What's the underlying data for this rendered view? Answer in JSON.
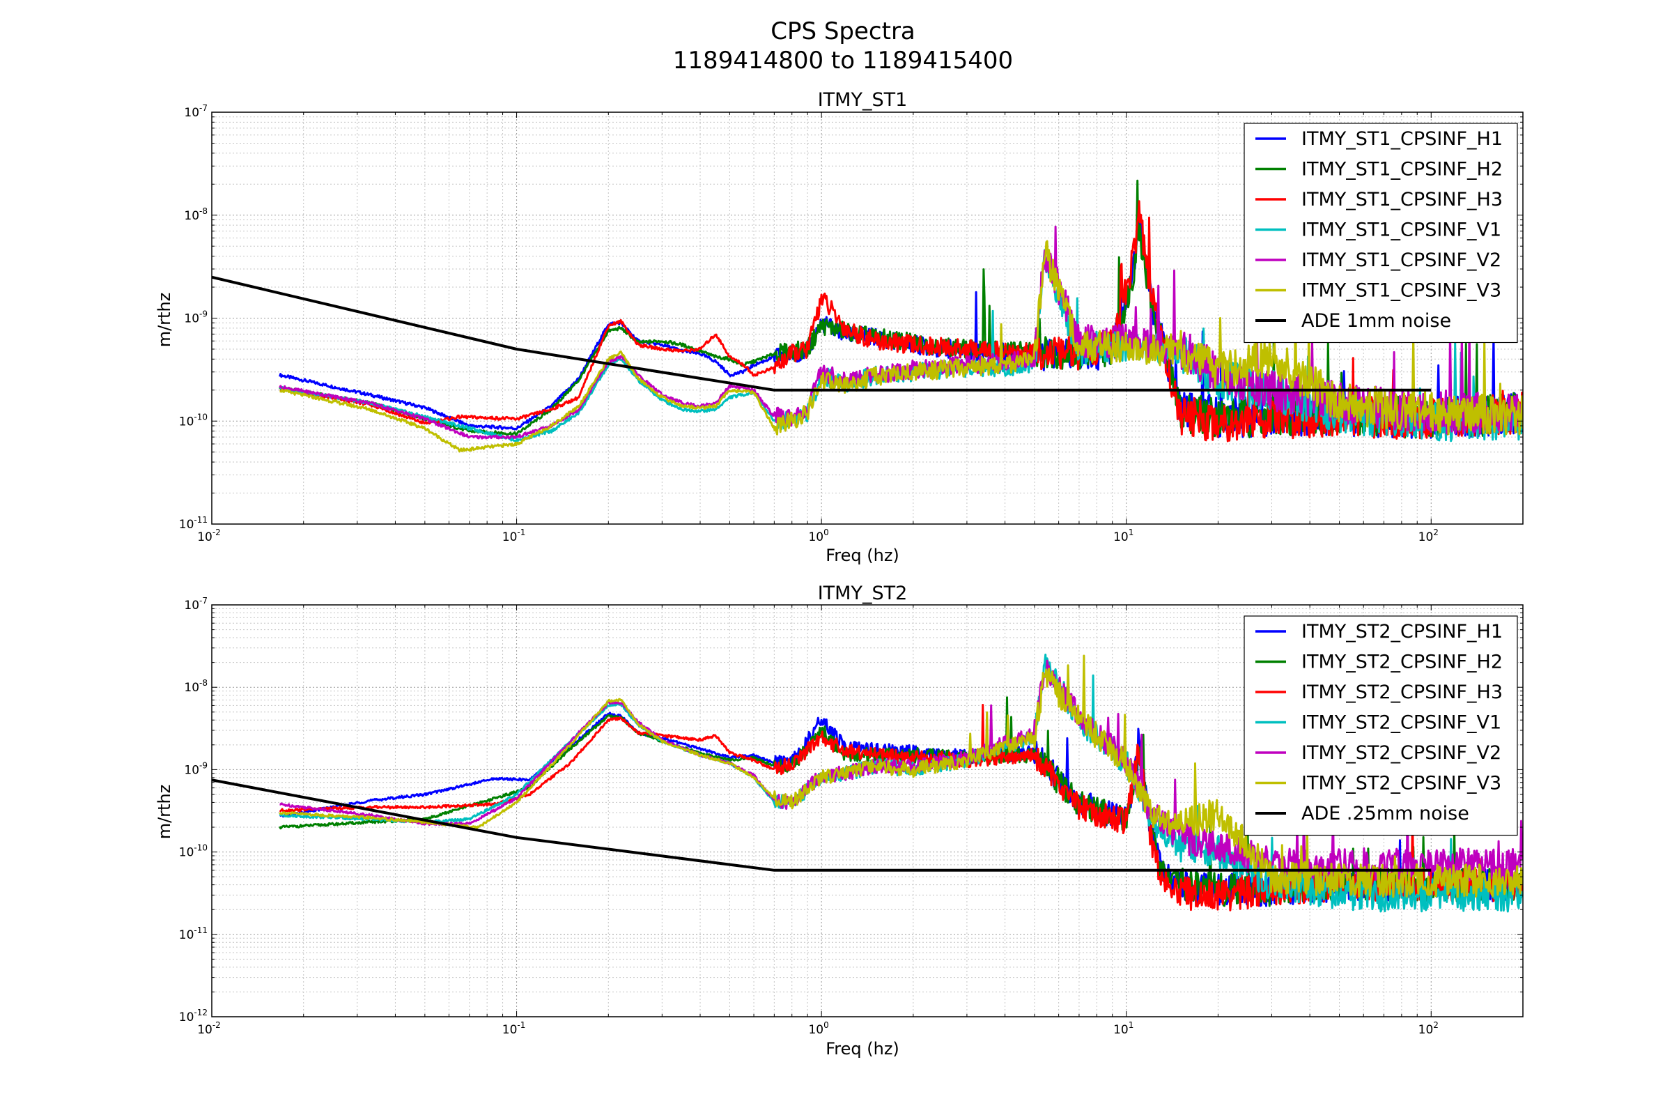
{
  "figure": {
    "title_line1": "CPS Spectra",
    "title_line2": "1189414800 to 1189415400"
  },
  "chart_data": [
    {
      "type": "line",
      "title": "ITMY_ST1",
      "xlabel": "Freq (hz)",
      "ylabel": "m/rthz",
      "xscale": "log",
      "yscale": "log",
      "xlim": [
        0.01,
        200
      ],
      "ylim": [
        1e-11,
        1e-07
      ],
      "xtick_labels": [
        "10-2",
        "10-1",
        "100",
        "101",
        "102"
      ],
      "ytick_labels": [
        "10-11",
        "10-10",
        "10-9",
        "10-8",
        "10-7"
      ],
      "grid": true,
      "legend_position": "top-right",
      "series": [
        {
          "name": "ITMY_ST1_CPSINF_H1",
          "color": "#0000ff",
          "x": [
            0.0167,
            0.033,
            0.05,
            0.07,
            0.1,
            0.13,
            0.16,
            0.2,
            0.22,
            0.25,
            0.3,
            0.35,
            0.4,
            0.45,
            0.5,
            0.55,
            0.6,
            0.7,
            0.8,
            0.9,
            1.0,
            1.2,
            1.5,
            2,
            3,
            5,
            7,
            9,
            10.5,
            11,
            12,
            15,
            20,
            30,
            50,
            100,
            200
          ],
          "y": [
            2.8e-10,
            1.8e-10,
            1.35e-10,
            9e-11,
            8.5e-11,
            1.4e-10,
            2.6e-10,
            8.8e-10,
            9e-10,
            6e-10,
            5.5e-10,
            4.8e-10,
            4.5e-10,
            3.8e-10,
            2.8e-10,
            3e-10,
            3.5e-10,
            4.2e-10,
            4.5e-10,
            4.8e-10,
            9e-10,
            7e-10,
            6.5e-10,
            5.5e-10,
            4.8e-10,
            4.5e-10,
            4.2e-10,
            4.8e-10,
            2.8e-09,
            9e-09,
            1.6e-09,
            1.3e-10,
            1.1e-10,
            1.1e-10,
            1.15e-10,
            1.05e-10,
            1.2e-10
          ]
        },
        {
          "name": "ITMY_ST1_CPSINF_H2",
          "color": "#008000",
          "x": [
            0.0167,
            0.033,
            0.05,
            0.07,
            0.1,
            0.13,
            0.16,
            0.2,
            0.22,
            0.25,
            0.3,
            0.35,
            0.4,
            0.45,
            0.5,
            0.55,
            0.6,
            0.7,
            0.8,
            0.9,
            1.0,
            1.2,
            1.5,
            2,
            3,
            5,
            7,
            9,
            10.5,
            11,
            12,
            15,
            20,
            30,
            50,
            100,
            200
          ],
          "y": [
            2.1e-10,
            1.5e-10,
            1.05e-10,
            8e-11,
            7.5e-11,
            1.3e-10,
            2.5e-10,
            7.5e-10,
            8e-10,
            5.8e-10,
            6e-10,
            5.5e-10,
            4.8e-10,
            4.2e-10,
            4e-10,
            3.5e-10,
            3.8e-10,
            4.5e-10,
            4.7e-10,
            5e-10,
            8.5e-10,
            7.5e-10,
            6.5e-10,
            5.8e-10,
            5e-10,
            4.8e-10,
            4.5e-10,
            5e-10,
            2.6e-09,
            8e-09,
            1.5e-09,
            1.25e-10,
            1.1e-10,
            1.1e-10,
            1.15e-10,
            1.05e-10,
            1.2e-10
          ]
        },
        {
          "name": "ITMY_ST1_CPSINF_H3",
          "color": "#ff0000",
          "x": [
            0.0167,
            0.033,
            0.05,
            0.065,
            0.1,
            0.13,
            0.16,
            0.2,
            0.22,
            0.25,
            0.3,
            0.35,
            0.4,
            0.45,
            0.5,
            0.55,
            0.6,
            0.7,
            0.8,
            0.9,
            1.0,
            1.2,
            1.5,
            2,
            3,
            5,
            7,
            9,
            10.5,
            11,
            12,
            15,
            20,
            30,
            50,
            100,
            200
          ],
          "y": [
            2.05e-10,
            1.45e-10,
            9.5e-11,
            1.1e-10,
            1.05e-10,
            1.3e-10,
            1.7e-10,
            8.5e-10,
            9.3e-10,
            5.5e-10,
            5e-10,
            4.8e-10,
            5e-10,
            7e-10,
            4.2e-10,
            3.6e-10,
            2.8e-10,
            3.3e-10,
            4.5e-10,
            5e-10,
            1.6e-09,
            7.8e-10,
            6e-10,
            5.5e-10,
            5e-10,
            4.6e-10,
            4.5e-10,
            5.5e-10,
            3.5e-09,
            1.1e-08,
            1.8e-09,
            1.1e-10,
            1e-10,
            1.05e-10,
            1.1e-10,
            1.05e-10,
            1.2e-10
          ]
        },
        {
          "name": "ITMY_ST1_CPSINF_V1",
          "color": "#00bfbf",
          "x": [
            0.0167,
            0.033,
            0.05,
            0.07,
            0.1,
            0.13,
            0.16,
            0.2,
            0.22,
            0.25,
            0.3,
            0.35,
            0.4,
            0.45,
            0.5,
            0.6,
            0.7,
            0.8,
            0.9,
            1.0,
            1.2,
            1.5,
            2,
            3,
            5,
            5.4,
            7,
            10,
            15,
            20,
            30,
            50,
            100,
            200
          ],
          "y": [
            2.1e-10,
            1.5e-10,
            1.1e-10,
            8.5e-11,
            6.5e-11,
            8e-11,
            1.2e-10,
            3.5e-10,
            4e-10,
            2.5e-10,
            1.6e-10,
            1.3e-10,
            1.25e-10,
            1.3e-10,
            1.7e-10,
            1.9e-10,
            1e-10,
            1.05e-10,
            1.2e-10,
            2.8e-10,
            2.3e-10,
            2.8e-10,
            3e-10,
            3.2e-10,
            3.5e-10,
            4e-09,
            5e-10,
            5.5e-10,
            4.5e-10,
            2.5e-10,
            2e-10,
            1.2e-10,
            1e-10,
            1e-10
          ]
        },
        {
          "name": "ITMY_ST1_CPSINF_V2",
          "color": "#bf00bf",
          "x": [
            0.0167,
            0.033,
            0.05,
            0.07,
            0.1,
            0.13,
            0.16,
            0.2,
            0.22,
            0.25,
            0.3,
            0.35,
            0.4,
            0.45,
            0.5,
            0.6,
            0.7,
            0.8,
            0.9,
            1.0,
            1.2,
            1.5,
            2,
            3,
            5,
            5.4,
            7,
            10,
            15,
            20,
            30,
            50,
            100,
            200
          ],
          "y": [
            2.15e-10,
            1.5e-10,
            1.05e-10,
            7e-11,
            7e-11,
            9e-11,
            1.3e-10,
            3.8e-10,
            4.2e-10,
            2.8e-10,
            1.8e-10,
            1.5e-10,
            1.4e-10,
            1.5e-10,
            2.2e-10,
            2e-10,
            1.1e-10,
            1.1e-10,
            1.3e-10,
            3e-10,
            2.5e-10,
            2.8e-10,
            3.2e-10,
            3.5e-10,
            4e-10,
            4.5e-09,
            6e-10,
            6e-10,
            5e-10,
            3e-10,
            2e-10,
            1.5e-10,
            1.2e-10,
            1.2e-10
          ]
        },
        {
          "name": "ITMY_ST1_CPSINF_V3",
          "color": "#bfbf00",
          "x": [
            0.0167,
            0.033,
            0.05,
            0.065,
            0.1,
            0.13,
            0.16,
            0.2,
            0.22,
            0.25,
            0.3,
            0.35,
            0.4,
            0.45,
            0.5,
            0.6,
            0.7,
            0.8,
            0.9,
            1.0,
            1.2,
            1.5,
            2,
            3,
            5,
            5.4,
            7,
            10,
            15,
            20,
            30,
            50,
            100,
            200
          ],
          "y": [
            2e-10,
            1.3e-10,
            8.5e-11,
            5.2e-11,
            6e-11,
            9e-11,
            1.4e-10,
            4e-10,
            4.6e-10,
            2.6e-10,
            1.7e-10,
            1.4e-10,
            1.35e-10,
            1.4e-10,
            2e-10,
            1.9e-10,
            8.5e-11,
            1e-10,
            1.2e-10,
            2.5e-10,
            2.2e-10,
            2.7e-10,
            3e-10,
            3.3e-10,
            3.8e-10,
            4.5e-09,
            5.5e-10,
            5e-10,
            5e-10,
            3e-10,
            4e-10,
            1.5e-10,
            1.2e-10,
            1.1e-10
          ]
        },
        {
          "name": "ADE 1mm noise",
          "color": "#000000",
          "x": [
            0.01,
            0.1,
            0.7,
            100
          ],
          "y": [
            2.5e-09,
            5e-10,
            2e-10,
            2e-10
          ]
        }
      ]
    },
    {
      "type": "line",
      "title": "ITMY_ST2",
      "xlabel": "Freq (hz)",
      "ylabel": "m/rthz",
      "xscale": "log",
      "yscale": "log",
      "xlim": [
        0.01,
        200
      ],
      "ylim": [
        1e-12,
        1e-07
      ],
      "xtick_labels": [
        "10-2",
        "10-1",
        "100",
        "101",
        "102"
      ],
      "ytick_labels": [
        "10-12",
        "10-11",
        "10-10",
        "10-9",
        "10-8",
        "10-7"
      ],
      "grid": true,
      "legend_position": "top-right",
      "series": [
        {
          "name": "ITMY_ST2_CPSINF_H1",
          "color": "#0000ff",
          "x": [
            0.0167,
            0.033,
            0.05,
            0.085,
            0.11,
            0.15,
            0.2,
            0.22,
            0.25,
            0.3,
            0.4,
            0.5,
            0.6,
            0.7,
            0.8,
            1.0,
            1.2,
            1.5,
            2,
            3,
            5,
            7,
            10,
            11,
            12,
            13,
            15,
            20,
            30,
            50,
            100,
            200
          ],
          "y": [
            2.7e-10,
            4.2e-10,
            5e-10,
            7.8e-10,
            7.5e-10,
            1.9e-09,
            4.8e-09,
            4.5e-09,
            2.8e-09,
            2.4e-09,
            1.8e-09,
            1.4e-09,
            1.5e-09,
            1.2e-09,
            1.2e-09,
            4e-09,
            1.8e-09,
            1.7e-09,
            1.6e-09,
            1.4e-09,
            1.6e-09,
            4e-10,
            2.5e-10,
            1.7e-09,
            2e-10,
            6e-11,
            4e-11,
            3.5e-11,
            3.5e-11,
            4e-11,
            4e-11,
            4e-11
          ]
        },
        {
          "name": "ITMY_ST2_CPSINF_H2",
          "color": "#008000",
          "x": [
            0.0167,
            0.033,
            0.05,
            0.085,
            0.11,
            0.15,
            0.2,
            0.22,
            0.25,
            0.3,
            0.4,
            0.5,
            0.6,
            0.7,
            0.8,
            1.0,
            1.2,
            1.5,
            2,
            3,
            5,
            7,
            10,
            11,
            12,
            13,
            15,
            20,
            30,
            50,
            100,
            200
          ],
          "y": [
            2e-10,
            2.3e-10,
            2.5e-10,
            4.5e-10,
            6e-10,
            1.8e-09,
            4.5e-09,
            4.3e-09,
            2.8e-09,
            2.2e-09,
            1.6e-09,
            1.3e-09,
            1.4e-09,
            1.1e-09,
            1.1e-09,
            3e-09,
            1.5e-09,
            1.5e-09,
            1.5e-09,
            1.4e-09,
            1.5e-09,
            3.8e-10,
            2.5e-10,
            1.6e-09,
            1.8e-10,
            5.5e-11,
            4e-11,
            3.5e-11,
            3.5e-11,
            4e-11,
            4e-11,
            4e-11
          ]
        },
        {
          "name": "ITMY_ST2_CPSINF_H3",
          "color": "#ff0000",
          "x": [
            0.0167,
            0.033,
            0.05,
            0.085,
            0.11,
            0.15,
            0.2,
            0.22,
            0.25,
            0.3,
            0.4,
            0.45,
            0.5,
            0.6,
            0.7,
            0.8,
            1.0,
            1.2,
            1.5,
            2,
            3,
            5,
            7,
            10,
            11,
            12,
            13,
            15,
            20,
            30,
            50,
            100,
            200
          ],
          "y": [
            3.2e-10,
            3.5e-10,
            3.5e-10,
            3.8e-10,
            5e-10,
            1.2e-09,
            4e-09,
            4.2e-09,
            2.8e-09,
            2.6e-09,
            2.3e-09,
            2.6e-09,
            1.6e-09,
            1.3e-09,
            1e-09,
            1.2e-09,
            2.4e-09,
            1.7e-09,
            1.5e-09,
            1.4e-09,
            1.3e-09,
            1.5e-09,
            3.5e-10,
            2.3e-10,
            1.8e-09,
            1.5e-10,
            5e-11,
            3.2e-11,
            3e-11,
            3.5e-11,
            4e-11,
            4e-11,
            4e-11
          ]
        },
        {
          "name": "ITMY_ST2_CPSINF_V1",
          "color": "#00bfbf",
          "x": [
            0.0167,
            0.033,
            0.05,
            0.07,
            0.1,
            0.15,
            0.2,
            0.22,
            0.25,
            0.3,
            0.4,
            0.5,
            0.6,
            0.7,
            0.8,
            1.0,
            1.2,
            1.5,
            2,
            3,
            5,
            5.4,
            7,
            10,
            12,
            15,
            20,
            30,
            50,
            100,
            200
          ],
          "y": [
            2.8e-10,
            2.5e-10,
            2.3e-10,
            2.5e-10,
            5e-10,
            2.2e-09,
            6e-09,
            6.2e-09,
            3.5e-09,
            2.2e-09,
            1.5e-09,
            1.2e-09,
            8e-10,
            4e-10,
            4e-10,
            8e-10,
            9e-10,
            1.1e-09,
            1e-09,
            1.3e-09,
            2.5e-09,
            2e-08,
            4e-09,
            1.2e-09,
            2.5e-10,
            1.2e-10,
            1e-10,
            4e-11,
            3e-11,
            3e-11,
            3e-11
          ]
        },
        {
          "name": "ITMY_ST2_CPSINF_V2",
          "color": "#bf00bf",
          "x": [
            0.0167,
            0.033,
            0.05,
            0.07,
            0.1,
            0.15,
            0.2,
            0.22,
            0.25,
            0.3,
            0.4,
            0.5,
            0.6,
            0.7,
            0.8,
            1.0,
            1.2,
            1.5,
            2,
            3,
            5,
            5.4,
            7,
            10,
            12,
            15,
            20,
            30,
            50,
            100,
            200
          ],
          "y": [
            3.8e-10,
            2.8e-10,
            2.2e-10,
            2.2e-10,
            4.5e-10,
            2.2e-09,
            6.5e-09,
            6.5e-09,
            3.8e-09,
            2.3e-09,
            1.5e-09,
            1.2e-09,
            8.5e-10,
            4.2e-10,
            4e-10,
            8.5e-10,
            9e-10,
            1.1e-09,
            1.1e-09,
            1.4e-09,
            2.8e-09,
            1.6e-08,
            4.5e-09,
            1.3e-09,
            3e-10,
            1.5e-10,
            1.2e-10,
            7e-11,
            7e-11,
            7e-11,
            7e-11
          ]
        },
        {
          "name": "ITMY_ST2_CPSINF_V3",
          "color": "#bfbf00",
          "x": [
            0.0167,
            0.033,
            0.05,
            0.075,
            0.1,
            0.15,
            0.2,
            0.22,
            0.25,
            0.3,
            0.4,
            0.5,
            0.6,
            0.7,
            0.8,
            1.0,
            1.2,
            1.5,
            2,
            3,
            5,
            5.4,
            7,
            10,
            12,
            15,
            20,
            30,
            50,
            100,
            200
          ],
          "y": [
            3e-10,
            2.6e-10,
            2.3e-10,
            2e-10,
            4e-10,
            2e-09,
            6.8e-09,
            7e-09,
            3.6e-09,
            2.2e-09,
            1.5e-09,
            1.2e-09,
            8e-10,
            4.5e-10,
            4e-10,
            8e-10,
            9e-10,
            1.1e-09,
            1e-09,
            1.3e-09,
            2.6e-09,
            1.4e-08,
            4e-09,
            1.2e-09,
            3e-10,
            2e-10,
            3e-10,
            5e-11,
            4.5e-11,
            4.5e-11,
            4.5e-11
          ]
        },
        {
          "name": "ADE .25mm noise",
          "color": "#000000",
          "x": [
            0.01,
            0.1,
            0.7,
            100
          ],
          "y": [
            7.5e-10,
            1.5e-10,
            6e-11,
            6e-11
          ]
        }
      ]
    }
  ]
}
